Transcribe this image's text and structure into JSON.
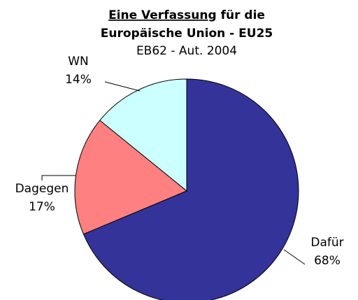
{
  "chart_data": {
    "type": "pie",
    "title": [
      "Eine Verfassung",
      " für die",
      "Europäische Union - EU25"
    ],
    "subtitle": "EB62 - Aut. 2004",
    "categories": [
      "Dafür",
      "Dagegen",
      "WN"
    ],
    "values": [
      68,
      17,
      14
    ],
    "value_labels": [
      "68%",
      "17%",
      "14%"
    ],
    "colors": [
      "#333399",
      "#ff8080",
      "#ccffff"
    ]
  }
}
